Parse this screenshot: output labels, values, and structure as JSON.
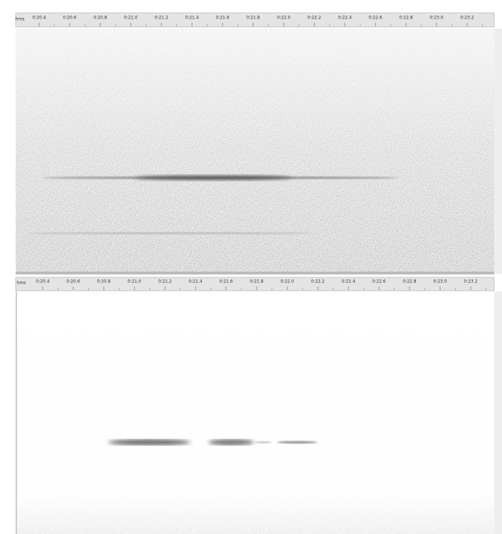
{
  "panels": [
    {
      "ruler": {
        "unit": "hms",
        "labels": [
          "0:20.4",
          "0:20.6",
          "0:20.8",
          "0:21.0",
          "0:21.2",
          "0:21.4",
          "0:21.6",
          "0:21.8",
          "0:22.0",
          "0:22.2",
          "0:22.4",
          "0:22.6",
          "0:22.8",
          "0:23.0",
          "0:23.2"
        ]
      }
    },
    {
      "ruler": {
        "unit": "hms",
        "labels": [
          "0:20.4",
          "0:20.6",
          "0:20.8",
          "0:21.0",
          "0:21.2",
          "0:21.4",
          "0:21.6",
          "0:21.8",
          "0:22.0",
          "0:22.2",
          "0:22.4",
          "0:22.6",
          "0:22.8",
          "0:23.0",
          "0:23.2"
        ]
      }
    }
  ]
}
